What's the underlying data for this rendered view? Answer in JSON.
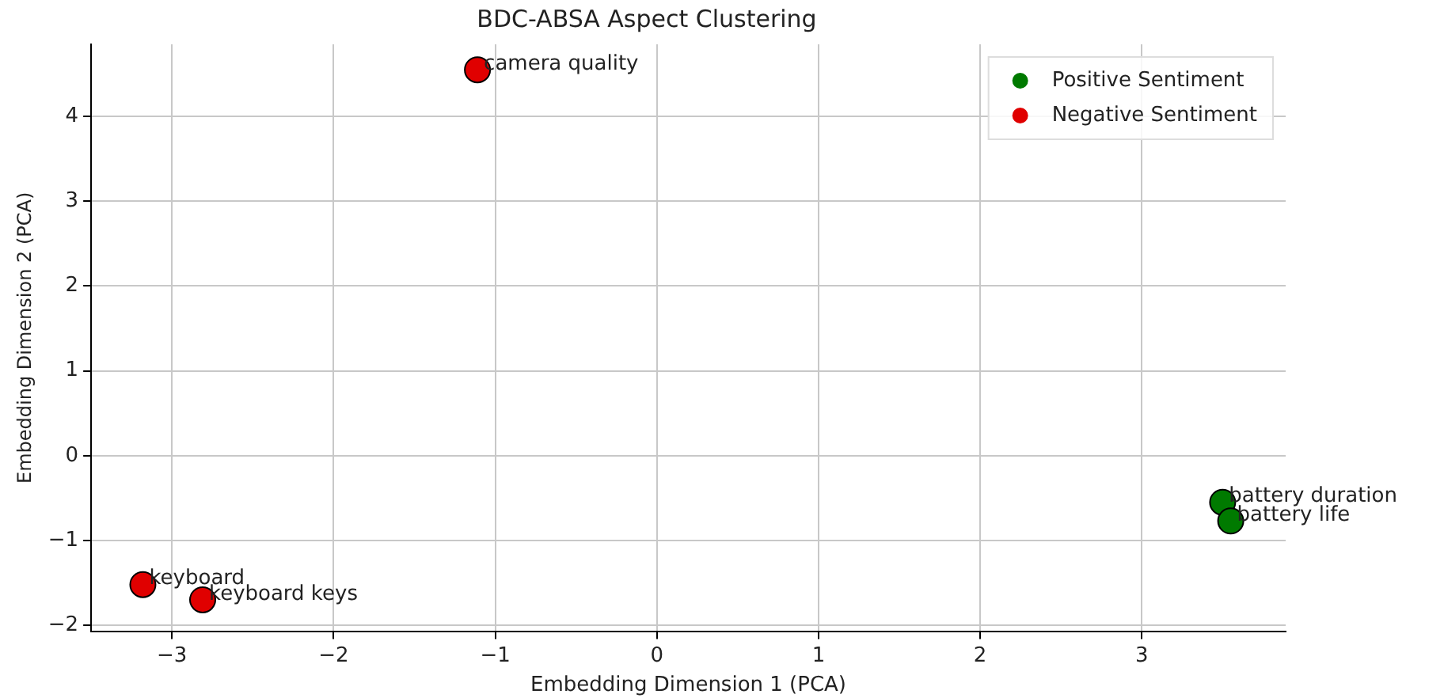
{
  "chart_data": {
    "type": "scatter",
    "title": "BDC-ABSA Aspect Clustering",
    "xlabel": "Embedding Dimension 1 (PCA)",
    "ylabel": "Embedding Dimension 2 (PCA)",
    "xlim": [
      -3.5,
      3.89
    ],
    "ylim": [
      -2.07,
      4.85
    ],
    "xticks": [
      -3,
      -2,
      -1,
      0,
      1,
      2,
      3
    ],
    "yticks": [
      -2,
      -1,
      0,
      1,
      2,
      3,
      4
    ],
    "series": [
      {
        "name": "Positive Sentiment",
        "color": "#007a00",
        "x": [
          3.5,
          3.55
        ],
        "values": [
          -0.55,
          -0.77
        ]
      },
      {
        "name": "Negative Sentiment",
        "color": "#e00000",
        "x": [
          -1.11,
          -3.18,
          -2.81
        ],
        "values": [
          4.55,
          -1.52,
          -1.7
        ]
      }
    ],
    "annotations": [
      {
        "text": "battery duration",
        "x": 3.5,
        "y": -0.55
      },
      {
        "text": "battery life",
        "x": 3.55,
        "y": -0.77
      },
      {
        "text": "camera quality",
        "x": -1.11,
        "y": 4.55
      },
      {
        "text": "keyboard",
        "x": -3.18,
        "y": -1.52
      },
      {
        "text": "keyboard keys",
        "x": -2.81,
        "y": -1.7
      }
    ],
    "grid": true,
    "legend": "top right",
    "marker": "circle"
  }
}
